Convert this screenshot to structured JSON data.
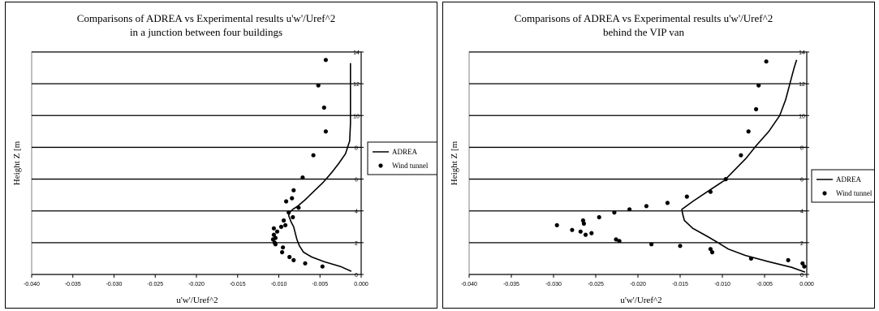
{
  "chart_data": [
    {
      "type": "scatter",
      "title": "Comparisons of ADREA vs Experimental results u'w'/Uref^2",
      "subtitle": "in a junction between four buildings",
      "xlabel": "u'w'/Uref^2",
      "ylabel": "Height Z [m",
      "xlim": [
        -0.04,
        0.0
      ],
      "ylim": [
        0,
        14
      ],
      "xticks": [
        "-0.040",
        "-0.035",
        "-0.030",
        "-0.025",
        "-0.020",
        "-0.015",
        "-0.010",
        "-0.005",
        "0.000"
      ],
      "yticks": [
        "0",
        "2",
        "4",
        "6",
        "8",
        "10",
        "12",
        "14"
      ],
      "grid": "horizontal",
      "legend_position": "right",
      "series": [
        {
          "name": "ADREA",
          "kind": "line",
          "points": [
            [
              -0.0012,
              0.2
            ],
            [
              -0.0025,
              0.5
            ],
            [
              -0.0045,
              0.8
            ],
            [
              -0.006,
              1.1
            ],
            [
              -0.007,
              1.4
            ],
            [
              -0.0075,
              1.8
            ],
            [
              -0.0078,
              2.2
            ],
            [
              -0.008,
              2.6
            ],
            [
              -0.0082,
              3.0
            ],
            [
              -0.0085,
              3.3
            ],
            [
              -0.0088,
              3.7
            ],
            [
              -0.0087,
              3.9
            ],
            [
              -0.0083,
              4.1
            ],
            [
              -0.0077,
              4.3
            ],
            [
              -0.0068,
              4.7
            ],
            [
              -0.0058,
              5.2
            ],
            [
              -0.0046,
              5.8
            ],
            [
              -0.0036,
              6.4
            ],
            [
              -0.0027,
              7.0
            ],
            [
              -0.0019,
              7.6
            ],
            [
              -0.0014,
              8.4
            ],
            [
              -0.0013,
              9.5
            ],
            [
              -0.0013,
              11.0
            ],
            [
              -0.0013,
              12.5
            ],
            [
              -0.0013,
              13.3
            ]
          ]
        },
        {
          "name": "Wind tunnel",
          "kind": "markers",
          "points": [
            [
              -0.0043,
              13.5
            ],
            [
              -0.0052,
              11.9
            ],
            [
              -0.0045,
              10.5
            ],
            [
              -0.0043,
              9.0
            ],
            [
              -0.0058,
              7.5
            ],
            [
              -0.0071,
              6.1
            ],
            [
              -0.0082,
              5.3
            ],
            [
              -0.0084,
              4.8
            ],
            [
              -0.0091,
              4.6
            ],
            [
              -0.0076,
              4.2
            ],
            [
              -0.0088,
              3.9
            ],
            [
              -0.0083,
              3.6
            ],
            [
              -0.0094,
              3.4
            ],
            [
              -0.0092,
              3.1
            ],
            [
              -0.0097,
              3.0
            ],
            [
              -0.0106,
              2.9
            ],
            [
              -0.0102,
              2.7
            ],
            [
              -0.0106,
              2.5
            ],
            [
              -0.0104,
              2.3
            ],
            [
              -0.0107,
              2.2
            ],
            [
              -0.0105,
              2.0
            ],
            [
              -0.0104,
              1.9
            ],
            [
              -0.0095,
              1.7
            ],
            [
              -0.0096,
              1.4
            ],
            [
              -0.0087,
              1.1
            ],
            [
              -0.0082,
              0.9
            ],
            [
              -0.0068,
              0.7
            ],
            [
              -0.0047,
              0.5
            ]
          ]
        }
      ]
    },
    {
      "type": "scatter",
      "title": "Comparisons of ADREA vs Experimental results u'w'/Uref^2",
      "subtitle": "behind the VIP van",
      "xlabel": "u'w'/Uref^2",
      "ylabel": "Height Z [m",
      "xlim": [
        -0.04,
        0.0
      ],
      "ylim": [
        0,
        14
      ],
      "xticks": [
        "-0.040",
        "-0.035",
        "-0.030",
        "-0.025",
        "-0.020",
        "-0.015",
        "-0.010",
        "-0.005",
        "0.000"
      ],
      "yticks": [
        "0",
        "2",
        "4",
        "6",
        "8",
        "10",
        "12",
        "14"
      ],
      "grid": "horizontal",
      "legend_position": "right",
      "series": [
        {
          "name": "ADREA",
          "kind": "line",
          "points": [
            [
              -0.0002,
              0.15
            ],
            [
              -0.0018,
              0.45
            ],
            [
              -0.0045,
              0.8
            ],
            [
              -0.0073,
              1.2
            ],
            [
              -0.0093,
              1.6
            ],
            [
              -0.0105,
              2.0
            ],
            [
              -0.0118,
              2.4
            ],
            [
              -0.0135,
              2.9
            ],
            [
              -0.0145,
              3.4
            ],
            [
              -0.0147,
              3.8
            ],
            [
              -0.0148,
              4.1
            ],
            [
              -0.0135,
              4.6
            ],
            [
              -0.0118,
              5.2
            ],
            [
              -0.0098,
              5.9
            ],
            [
              -0.0085,
              6.6
            ],
            [
              -0.0072,
              7.3
            ],
            [
              -0.006,
              8.1
            ],
            [
              -0.0045,
              9.0
            ],
            [
              -0.0032,
              10.0
            ],
            [
              -0.0025,
              11.0
            ],
            [
              -0.002,
              12.0
            ],
            [
              -0.0015,
              13.0
            ],
            [
              -0.0012,
              13.5
            ]
          ]
        },
        {
          "name": "Wind tunnel",
          "kind": "markers",
          "points": [
            [
              -0.0048,
              13.4
            ],
            [
              -0.0057,
              11.9
            ],
            [
              -0.006,
              10.4
            ],
            [
              -0.0069,
              9.0
            ],
            [
              -0.0078,
              7.5
            ],
            [
              -0.0096,
              6.0
            ],
            [
              -0.0114,
              5.2
            ],
            [
              -0.0142,
              4.9
            ],
            [
              -0.0165,
              4.5
            ],
            [
              -0.019,
              4.3
            ],
            [
              -0.021,
              4.1
            ],
            [
              -0.0228,
              3.9
            ],
            [
              -0.0246,
              3.6
            ],
            [
              -0.0265,
              3.4
            ],
            [
              -0.0264,
              3.2
            ],
            [
              -0.0296,
              3.1
            ],
            [
              -0.0278,
              2.8
            ],
            [
              -0.0268,
              2.7
            ],
            [
              -0.0262,
              2.5
            ],
            [
              -0.0255,
              2.6
            ],
            [
              -0.0226,
              2.2
            ],
            [
              -0.0222,
              2.1
            ],
            [
              -0.0184,
              1.9
            ],
            [
              -0.015,
              1.8
            ],
            [
              -0.0114,
              1.6
            ],
            [
              -0.0112,
              1.4
            ],
            [
              -0.0066,
              1.0
            ],
            [
              -0.0022,
              0.9
            ],
            [
              -0.0005,
              0.7
            ],
            [
              -0.0003,
              0.5
            ]
          ]
        }
      ]
    }
  ]
}
